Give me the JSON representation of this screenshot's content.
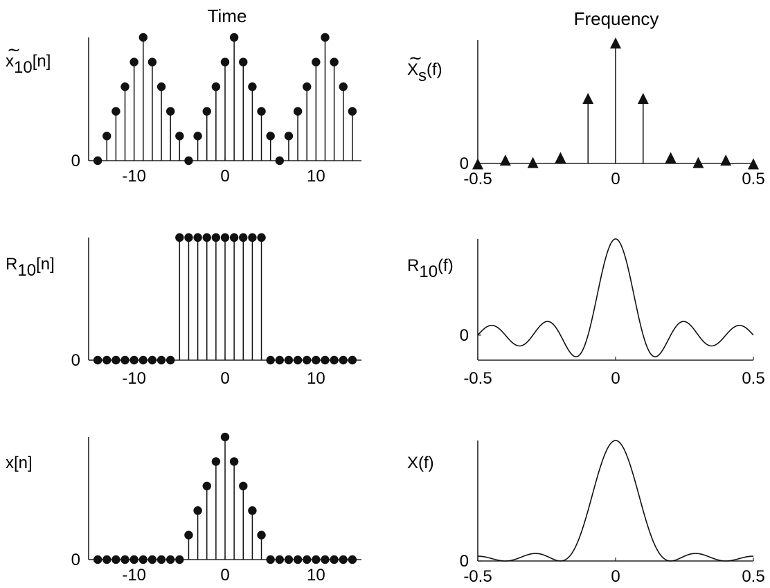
{
  "titles": {
    "time": "Time",
    "frequency": "Frequency"
  },
  "chart_data": [
    {
      "id": "x10-periodic",
      "type": "stem",
      "ylabel": {
        "tilde": "~",
        "base": "x",
        "sub": "10",
        "arg": "[n]"
      },
      "n": [
        -14,
        -13,
        -12,
        -11,
        -10,
        -9,
        -8,
        -7,
        -6,
        -5,
        -4,
        -3,
        -2,
        -1,
        0,
        1,
        2,
        3,
        4,
        5,
        6,
        7,
        8,
        9,
        10,
        11,
        12,
        13,
        14
      ],
      "values": [
        0.0,
        0.2,
        0.4,
        0.6,
        0.8,
        1.0,
        0.8,
        0.6,
        0.4,
        0.2,
        0.0,
        0.2,
        0.4,
        0.6,
        0.8,
        1.0,
        0.8,
        0.6,
        0.4,
        0.2,
        0.0,
        0.2,
        0.4,
        0.6,
        0.8,
        1.0,
        0.8,
        0.6,
        0.4
      ],
      "xlim": [
        -15,
        15
      ],
      "ylim": [
        0,
        1.0
      ],
      "xticks": [
        -10,
        0,
        10
      ],
      "xtick_labels": [
        "-10",
        "0",
        "10"
      ],
      "ytick_labels": [
        "0"
      ]
    },
    {
      "id": "xs-tilde-spectrum",
      "type": "stem",
      "marker": "triangle",
      "ylabel": {
        "tilde": "~",
        "base": "X",
        "sub": "s",
        "arg": "(f)"
      },
      "x": [
        -0.5,
        -0.4,
        -0.3,
        -0.2,
        -0.1,
        0,
        0.1,
        0.2,
        0.3,
        0.4,
        0.5
      ],
      "values": [
        0.02,
        0.05,
        0.03,
        0.07,
        0.55,
        1.0,
        0.55,
        0.07,
        0.03,
        0.05,
        0.02
      ],
      "xlim": [
        -0.5,
        0.5
      ],
      "ylim": [
        0,
        1.0
      ],
      "xticks": [
        -0.5,
        0,
        0.5
      ],
      "xtick_labels": [
        "-0.5",
        "0",
        "0.5"
      ],
      "ytick_labels": [
        "0"
      ]
    },
    {
      "id": "r10-window",
      "type": "stem",
      "ylabel": {
        "tilde": "",
        "base": "R",
        "sub": "10",
        "arg": "[n]"
      },
      "n": [
        -14,
        -13,
        -12,
        -11,
        -10,
        -9,
        -8,
        -7,
        -6,
        -5,
        -4,
        -3,
        -2,
        -1,
        0,
        1,
        2,
        3,
        4,
        5,
        6,
        7,
        8,
        9,
        10,
        11,
        12,
        13,
        14
      ],
      "values": [
        0,
        0,
        0,
        0,
        0,
        0,
        0,
        0,
        0,
        1,
        1,
        1,
        1,
        1,
        1,
        1,
        1,
        1,
        1,
        0,
        0,
        0,
        0,
        0,
        0,
        0,
        0,
        0,
        0
      ],
      "xlim": [
        -15,
        15
      ],
      "ylim": [
        0,
        1.0
      ],
      "xticks": [
        -10,
        0,
        10
      ],
      "xtick_labels": [
        "-10",
        "0",
        "10"
      ],
      "ytick_labels": [
        "0"
      ]
    },
    {
      "id": "r10-spectrum",
      "type": "line",
      "function": "dirichlet",
      "window_length": 10,
      "ylabel": {
        "tilde": "",
        "base": "R",
        "sub": "10",
        "arg": "(f)"
      },
      "xlim": [
        -0.5,
        0.5
      ],
      "ylim": [
        -2.6,
        10.0
      ],
      "xticks": [
        -0.5,
        0,
        0.5
      ],
      "xtick_labels": [
        "-0.5",
        "0",
        "0.5"
      ],
      "ytick_labels": [
        "0"
      ]
    },
    {
      "id": "x-finite",
      "type": "stem",
      "ylabel": {
        "tilde": "",
        "base": "x",
        "sub": "",
        "arg": "[n]"
      },
      "n": [
        -14,
        -13,
        -12,
        -11,
        -10,
        -9,
        -8,
        -7,
        -6,
        -5,
        -4,
        -3,
        -2,
        -1,
        0,
        1,
        2,
        3,
        4,
        5,
        6,
        7,
        8,
        9,
        10,
        11,
        12,
        13,
        14
      ],
      "values": [
        0,
        0,
        0,
        0,
        0,
        0,
        0,
        0,
        0,
        0,
        0.2,
        0.4,
        0.6,
        0.8,
        1.0,
        0.8,
        0.6,
        0.4,
        0.2,
        0,
        0,
        0,
        0,
        0,
        0,
        0,
        0,
        0,
        0
      ],
      "xlim": [
        -15,
        15
      ],
      "ylim": [
        0,
        1.0
      ],
      "xticks": [
        -10,
        0,
        10
      ],
      "xtick_labels": [
        "-10",
        "0",
        "10"
      ],
      "ytick_labels": [
        "0"
      ]
    },
    {
      "id": "x-spectrum",
      "type": "line",
      "function": "fejer",
      "window_length": 5,
      "ylabel": {
        "tilde": "",
        "base": "X",
        "sub": "",
        "arg": "(f)"
      },
      "xlim": [
        -0.5,
        0.5
      ],
      "ylim": [
        0,
        25.0
      ],
      "xticks": [
        -0.5,
        0,
        0.5
      ],
      "xtick_labels": [
        "-0.5",
        "0",
        "0.5"
      ],
      "ytick_labels": [
        "0"
      ]
    }
  ]
}
